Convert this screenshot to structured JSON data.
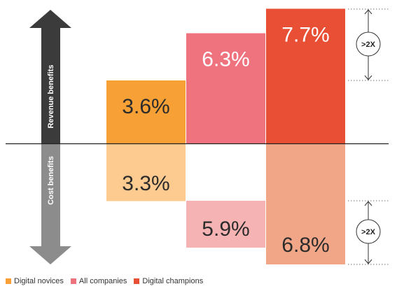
{
  "chart_data": {
    "type": "bar",
    "title": "",
    "axis": {
      "upper_label": "Revenue benefits",
      "lower_label": "Cost benefits"
    },
    "series": [
      {
        "name": "Digital novices",
        "revenue": 3.6,
        "cost": 3.3,
        "revenue_label": "3.6%",
        "cost_label": "3.3%",
        "color": "#f7a035",
        "cost_color": "#fdca90"
      },
      {
        "name": "All companies",
        "revenue": 6.3,
        "cost": 5.9,
        "revenue_label": "6.3%",
        "cost_label": "5.9%",
        "color": "#ef737e",
        "cost_color": "#f6b3b3"
      },
      {
        "name": "Digital champions",
        "revenue": 7.7,
        "cost": 6.8,
        "revenue_label": "7.7%",
        "cost_label": "6.8%",
        "color": "#e84f35",
        "cost_color": "#f2a688"
      }
    ],
    "annotations": {
      "revenue_multiplier": ">2X",
      "cost_multiplier": ">2X"
    }
  }
}
